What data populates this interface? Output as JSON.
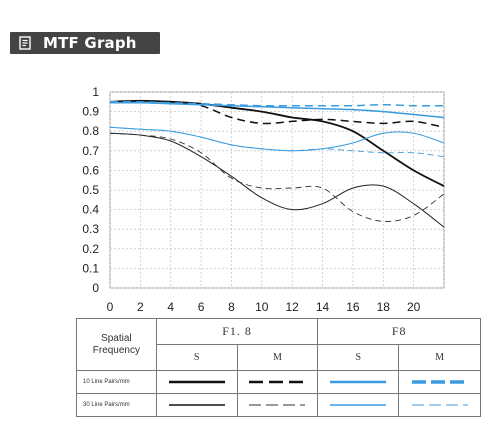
{
  "header": {
    "title": "MTF Graph",
    "icon": "document-icon"
  },
  "chart_data": {
    "type": "line",
    "title": "MTF Graph",
    "xlabel": "",
    "ylabel": "",
    "xlim": [
      0,
      22
    ],
    "ylim": [
      0,
      1
    ],
    "x_ticks": [
      "0",
      "2",
      "4",
      "6",
      "8",
      "10",
      "12",
      "14",
      "16",
      "18",
      "20"
    ],
    "y_ticks": [
      "0",
      "0.1",
      "0.2",
      "0.3",
      "0.4",
      "0.5",
      "0.6",
      "0.7",
      "0.8",
      "0.9",
      "1"
    ],
    "grid": true,
    "series": [
      {
        "name": "F1.8 S 10 Line Pairs/mm",
        "color": "#111111",
        "dash": false,
        "width": 1.8,
        "x": [
          0,
          2,
          4,
          6,
          8,
          10,
          12,
          14,
          16,
          18,
          20,
          22
        ],
        "y": [
          0.95,
          0.955,
          0.95,
          0.94,
          0.92,
          0.9,
          0.87,
          0.85,
          0.8,
          0.7,
          0.6,
          0.52
        ]
      },
      {
        "name": "F1.8 M 10 Line Pairs/mm",
        "color": "#111111",
        "dash": true,
        "width": 1.5,
        "x": [
          0,
          2,
          4,
          6,
          8,
          10,
          12,
          14,
          16,
          18,
          20,
          22
        ],
        "y": [
          0.95,
          0.95,
          0.95,
          0.93,
          0.87,
          0.84,
          0.85,
          0.86,
          0.85,
          0.84,
          0.85,
          0.82
        ]
      },
      {
        "name": "F1.8 S 30 Line Pairs/mm",
        "color": "#222222",
        "dash": false,
        "width": 1.0,
        "x": [
          0,
          2,
          4,
          6,
          8,
          10,
          12,
          14,
          16,
          18,
          20,
          22
        ],
        "y": [
          0.79,
          0.78,
          0.75,
          0.67,
          0.57,
          0.46,
          0.4,
          0.43,
          0.51,
          0.52,
          0.43,
          0.31
        ]
      },
      {
        "name": "F1.8 M 30 Line Pairs/mm",
        "color": "#333333",
        "dash": true,
        "width": 0.9,
        "x": [
          0,
          2,
          4,
          6,
          8,
          10,
          12,
          14,
          16,
          18,
          20,
          22
        ],
        "y": [
          0.79,
          0.78,
          0.76,
          0.69,
          0.56,
          0.51,
          0.51,
          0.51,
          0.39,
          0.34,
          0.37,
          0.48
        ]
      },
      {
        "name": "F8 S 10 Line Pairs/mm",
        "color": "#3a9be0",
        "dash": false,
        "width": 1.5,
        "x": [
          0,
          2,
          4,
          6,
          8,
          10,
          12,
          14,
          16,
          18,
          20,
          22
        ],
        "y": [
          0.945,
          0.945,
          0.94,
          0.935,
          0.93,
          0.925,
          0.92,
          0.915,
          0.91,
          0.9,
          0.885,
          0.87
        ]
      },
      {
        "name": "F8 M 10 Line Pairs/mm",
        "color": "#3a9be0",
        "dash": true,
        "width": 1.5,
        "x": [
          0,
          2,
          4,
          6,
          8,
          10,
          12,
          14,
          16,
          18,
          20,
          22
        ],
        "y": [
          0.95,
          0.95,
          0.945,
          0.94,
          0.935,
          0.93,
          0.93,
          0.93,
          0.93,
          0.935,
          0.93,
          0.93
        ]
      },
      {
        "name": "F8 S 30 Line Pairs/mm",
        "color": "#3a9be0",
        "dash": false,
        "width": 1.0,
        "x": [
          0,
          2,
          4,
          6,
          8,
          10,
          12,
          14,
          16,
          18,
          20,
          22
        ],
        "y": [
          0.82,
          0.81,
          0.8,
          0.77,
          0.73,
          0.71,
          0.7,
          0.71,
          0.74,
          0.79,
          0.79,
          0.74
        ]
      },
      {
        "name": "F8 M 30 Line Pairs/mm",
        "color": "#3a9be0",
        "dash": true,
        "width": 0.9,
        "x": [
          0,
          2,
          4,
          6,
          8,
          10,
          12,
          14,
          16,
          18,
          20,
          22
        ],
        "y": [
          0.82,
          0.81,
          0.8,
          0.77,
          0.73,
          0.71,
          0.7,
          0.71,
          0.7,
          0.69,
          0.69,
          0.67
        ]
      }
    ]
  },
  "legend": {
    "spatial_label": "Spatial Frequency",
    "apertures": [
      "F1. 8",
      "F8"
    ],
    "types": [
      "S",
      "M",
      "S",
      "M"
    ],
    "rows": [
      {
        "label": "10 Line Pairs/mm"
      },
      {
        "label": "30 Line Pairs/mm"
      }
    ]
  }
}
